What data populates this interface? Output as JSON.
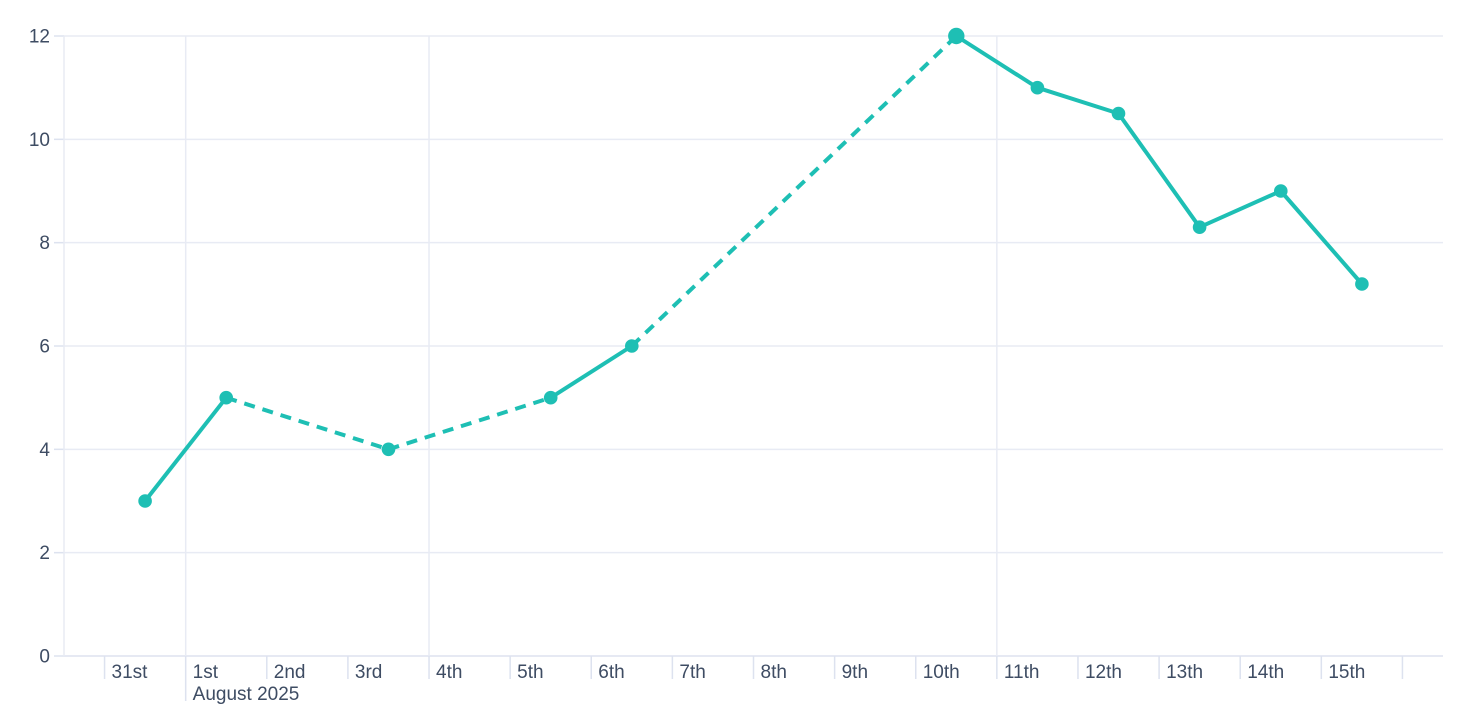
{
  "chart_data": {
    "type": "line",
    "title": "",
    "x_axis": {
      "categories": [
        "31st",
        "1st",
        "2nd",
        "3rd",
        "4th",
        "5th",
        "6th",
        "7th",
        "8th",
        "9th",
        "10th",
        "11th",
        "12th",
        "13th",
        "14th",
        "15th"
      ],
      "secondary_label": {
        "text": "August 2025",
        "anchor_category": "1st"
      }
    },
    "y_axis": {
      "ticks": [
        0,
        2,
        4,
        6,
        8,
        10,
        12
      ],
      "range": [
        0,
        12
      ]
    },
    "series": [
      {
        "name": "daily-values",
        "color": "#1ebfb4",
        "points": [
          {
            "x": "31st",
            "y": 3
          },
          {
            "x": "1st",
            "y": 5
          },
          {
            "x": "3rd",
            "y": 4
          },
          {
            "x": "5th",
            "y": 5
          },
          {
            "x": "6th",
            "y": 6
          },
          {
            "x": "10th",
            "y": 12,
            "emphasis": true
          },
          {
            "x": "11th",
            "y": 11
          },
          {
            "x": "12th",
            "y": 10.5
          },
          {
            "x": "13th",
            "y": 8.3
          },
          {
            "x": "14th",
            "y": 9
          },
          {
            "x": "15th",
            "y": 7.2
          }
        ],
        "segments": [
          {
            "from": "31st",
            "to": "1st",
            "style": "solid"
          },
          {
            "from": "1st",
            "to": "3rd",
            "style": "dashed"
          },
          {
            "from": "3rd",
            "to": "5th",
            "style": "dashed"
          },
          {
            "from": "5th",
            "to": "6th",
            "style": "solid"
          },
          {
            "from": "6th",
            "to": "10th",
            "style": "dashed"
          },
          {
            "from": "10th",
            "to": "15th",
            "style": "solid"
          }
        ]
      }
    ],
    "grid": {
      "horizontal": true,
      "vertical_lines_before": [
        "1st",
        "4th",
        "11th"
      ]
    },
    "colors": {
      "line": "#1ebfb4",
      "grid": "#e8ebf4",
      "axis": "#dde2ef",
      "text": "#3e4c63"
    },
    "legend": {
      "visible": false
    }
  }
}
